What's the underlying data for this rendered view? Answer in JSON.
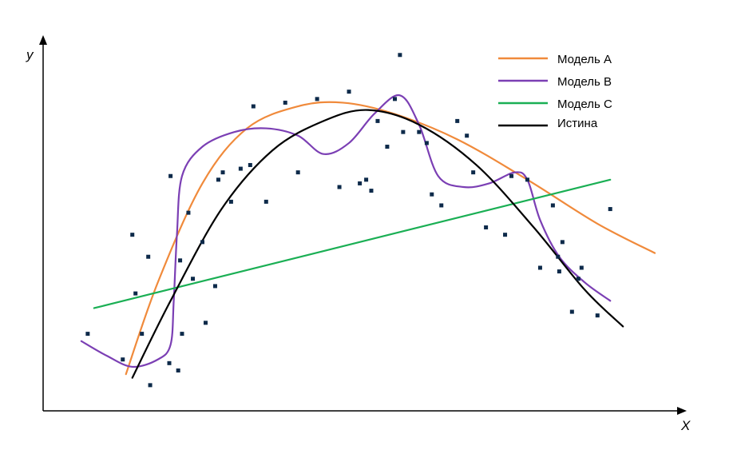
{
  "chart_data": {
    "type": "scatter",
    "title": "",
    "xlabel": "X",
    "ylabel": "y",
    "legend_position": "top-right",
    "grid": false,
    "ticks": false,
    "series": [
      {
        "name": "Модель A",
        "kind": "line",
        "color": "#f08a3b",
        "points": [
          [
            0.13,
            0.1
          ],
          [
            0.18,
            0.35
          ],
          [
            0.25,
            0.62
          ],
          [
            0.32,
            0.77
          ],
          [
            0.4,
            0.83
          ],
          [
            0.47,
            0.84
          ],
          [
            0.55,
            0.81
          ],
          [
            0.65,
            0.74
          ],
          [
            0.76,
            0.63
          ],
          [
            0.87,
            0.51
          ],
          [
            0.96,
            0.43
          ]
        ]
      },
      {
        "name": "Модель B",
        "kind": "line",
        "color": "#7b3fb4",
        "points": [
          [
            0.06,
            0.19
          ],
          [
            0.1,
            0.15
          ],
          [
            0.14,
            0.12
          ],
          [
            0.18,
            0.14
          ],
          [
            0.2,
            0.18
          ],
          [
            0.205,
            0.3
          ],
          [
            0.21,
            0.48
          ],
          [
            0.218,
            0.64
          ],
          [
            0.25,
            0.72
          ],
          [
            0.3,
            0.76
          ],
          [
            0.35,
            0.77
          ],
          [
            0.4,
            0.75
          ],
          [
            0.44,
            0.7
          ],
          [
            0.48,
            0.73
          ],
          [
            0.52,
            0.81
          ],
          [
            0.56,
            0.86
          ],
          [
            0.59,
            0.78
          ],
          [
            0.62,
            0.64
          ],
          [
            0.66,
            0.61
          ],
          [
            0.7,
            0.62
          ],
          [
            0.74,
            0.65
          ],
          [
            0.76,
            0.63
          ],
          [
            0.78,
            0.52
          ],
          [
            0.81,
            0.42
          ],
          [
            0.85,
            0.35
          ],
          [
            0.89,
            0.3
          ]
        ]
      },
      {
        "name": "Модель C",
        "kind": "line",
        "color": "#1aaf54",
        "points": [
          [
            0.08,
            0.28
          ],
          [
            0.89,
            0.63
          ]
        ]
      },
      {
        "name": "Истина",
        "kind": "line",
        "color": "#000000",
        "points": [
          [
            0.14,
            0.09
          ],
          [
            0.2,
            0.3
          ],
          [
            0.28,
            0.55
          ],
          [
            0.36,
            0.71
          ],
          [
            0.44,
            0.79
          ],
          [
            0.51,
            0.82
          ],
          [
            0.59,
            0.78
          ],
          [
            0.68,
            0.67
          ],
          [
            0.77,
            0.5
          ],
          [
            0.85,
            0.33
          ],
          [
            0.91,
            0.23
          ]
        ]
      },
      {
        "name": "",
        "kind": "points",
        "color": "#0d2a4a",
        "points": [
          [
            0.07,
            0.21
          ],
          [
            0.125,
            0.14
          ],
          [
            0.14,
            0.48
          ],
          [
            0.145,
            0.32
          ],
          [
            0.155,
            0.21
          ],
          [
            0.165,
            0.42
          ],
          [
            0.168,
            0.07
          ],
          [
            0.2,
            0.64
          ],
          [
            0.198,
            0.13
          ],
          [
            0.212,
            0.11
          ],
          [
            0.215,
            0.41
          ],
          [
            0.218,
            0.21
          ],
          [
            0.228,
            0.54
          ],
          [
            0.235,
            0.36
          ],
          [
            0.25,
            0.46
          ],
          [
            0.255,
            0.24
          ],
          [
            0.27,
            0.34
          ],
          [
            0.275,
            0.63
          ],
          [
            0.282,
            0.65
          ],
          [
            0.295,
            0.57
          ],
          [
            0.31,
            0.66
          ],
          [
            0.325,
            0.67
          ],
          [
            0.33,
            0.83
          ],
          [
            0.35,
            0.57
          ],
          [
            0.38,
            0.84
          ],
          [
            0.4,
            0.65
          ],
          [
            0.43,
            0.85
          ],
          [
            0.465,
            0.61
          ],
          [
            0.48,
            0.87
          ],
          [
            0.497,
            0.62
          ],
          [
            0.507,
            0.63
          ],
          [
            0.515,
            0.6
          ],
          [
            0.525,
            0.79
          ],
          [
            0.54,
            0.72
          ],
          [
            0.552,
            0.85
          ],
          [
            0.56,
            0.97
          ],
          [
            0.565,
            0.76
          ],
          [
            0.59,
            0.76
          ],
          [
            0.602,
            0.73
          ],
          [
            0.61,
            0.59
          ],
          [
            0.625,
            0.56
          ],
          [
            0.65,
            0.79
          ],
          [
            0.665,
            0.75
          ],
          [
            0.675,
            0.65
          ],
          [
            0.695,
            0.5
          ],
          [
            0.725,
            0.48
          ],
          [
            0.735,
            0.64
          ],
          [
            0.76,
            0.63
          ],
          [
            0.78,
            0.39
          ],
          [
            0.8,
            0.56
          ],
          [
            0.808,
            0.42
          ],
          [
            0.815,
            0.46
          ],
          [
            0.81,
            0.38
          ],
          [
            0.83,
            0.27
          ],
          [
            0.84,
            0.36
          ],
          [
            0.845,
            0.39
          ],
          [
            0.87,
            0.26
          ],
          [
            0.89,
            0.55
          ]
        ]
      }
    ]
  }
}
